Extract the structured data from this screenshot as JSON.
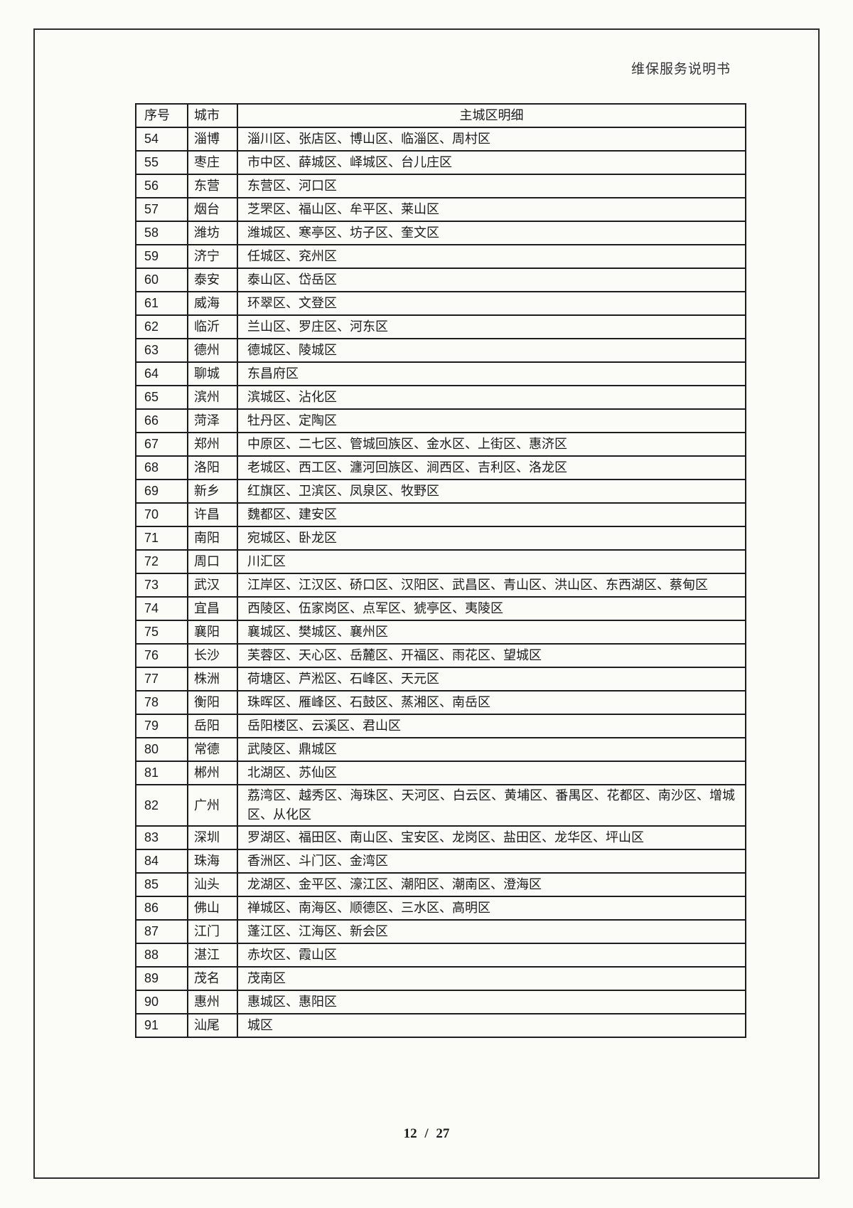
{
  "page": {
    "header_title": "维保服务说明书",
    "footer_text": "12 / 27"
  },
  "table": {
    "headers": {
      "no": "序号",
      "city": "城市",
      "districts": "主城区明细"
    },
    "rows": [
      {
        "no": "54",
        "city": "淄博",
        "districts": "淄川区、张店区、博山区、临淄区、周村区"
      },
      {
        "no": "55",
        "city": "枣庄",
        "districts": "市中区、薛城区、峄城区、台儿庄区"
      },
      {
        "no": "56",
        "city": "东营",
        "districts": "东营区、河口区"
      },
      {
        "no": "57",
        "city": "烟台",
        "districts": "芝罘区、福山区、牟平区、莱山区"
      },
      {
        "no": "58",
        "city": "潍坊",
        "districts": "潍城区、寒亭区、坊子区、奎文区"
      },
      {
        "no": "59",
        "city": "济宁",
        "districts": "任城区、兖州区"
      },
      {
        "no": "60",
        "city": "泰安",
        "districts": "泰山区、岱岳区"
      },
      {
        "no": "61",
        "city": "威海",
        "districts": "环翠区、文登区"
      },
      {
        "no": "62",
        "city": "临沂",
        "districts": "兰山区、罗庄区、河东区"
      },
      {
        "no": "63",
        "city": "德州",
        "districts": "德城区、陵城区"
      },
      {
        "no": "64",
        "city": "聊城",
        "districts": "东昌府区"
      },
      {
        "no": "65",
        "city": "滨州",
        "districts": "滨城区、沾化区"
      },
      {
        "no": "66",
        "city": "菏泽",
        "districts": "牡丹区、定陶区"
      },
      {
        "no": "67",
        "city": "郑州",
        "districts": "中原区、二七区、管城回族区、金水区、上街区、惠济区"
      },
      {
        "no": "68",
        "city": "洛阳",
        "districts": "老城区、西工区、瀍河回族区、涧西区、吉利区、洛龙区"
      },
      {
        "no": "69",
        "city": "新乡",
        "districts": "红旗区、卫滨区、凤泉区、牧野区"
      },
      {
        "no": "70",
        "city": "许昌",
        "districts": "魏都区、建安区"
      },
      {
        "no": "71",
        "city": "南阳",
        "districts": "宛城区、卧龙区"
      },
      {
        "no": "72",
        "city": "周口",
        "districts": "川汇区"
      },
      {
        "no": "73",
        "city": "武汉",
        "districts": "江岸区、江汉区、硚口区、汉阳区、武昌区、青山区、洪山区、东西湖区、蔡甸区"
      },
      {
        "no": "74",
        "city": "宜昌",
        "districts": "西陵区、伍家岗区、点军区、猇亭区、夷陵区"
      },
      {
        "no": "75",
        "city": "襄阳",
        "districts": "襄城区、樊城区、襄州区"
      },
      {
        "no": "76",
        "city": "长沙",
        "districts": "芙蓉区、天心区、岳麓区、开福区、雨花区、望城区"
      },
      {
        "no": "77",
        "city": "株洲",
        "districts": "荷塘区、芦淞区、石峰区、天元区"
      },
      {
        "no": "78",
        "city": "衡阳",
        "districts": "珠晖区、雁峰区、石鼓区、蒸湘区、南岳区"
      },
      {
        "no": "79",
        "city": "岳阳",
        "districts": "岳阳楼区、云溪区、君山区"
      },
      {
        "no": "80",
        "city": "常德",
        "districts": "武陵区、鼎城区"
      },
      {
        "no": "81",
        "city": "郴州",
        "districts": "北湖区、苏仙区"
      },
      {
        "no": "82",
        "city": "广州",
        "districts": "荔湾区、越秀区、海珠区、天河区、白云区、黄埔区、番禺区、花都区、南沙区、增城区、从化区"
      },
      {
        "no": "83",
        "city": "深圳",
        "districts": "罗湖区、福田区、南山区、宝安区、龙岗区、盐田区、龙华区、坪山区"
      },
      {
        "no": "84",
        "city": "珠海",
        "districts": "香洲区、斗门区、金湾区"
      },
      {
        "no": "85",
        "city": "汕头",
        "districts": "龙湖区、金平区、濠江区、潮阳区、潮南区、澄海区"
      },
      {
        "no": "86",
        "city": "佛山",
        "districts": "禅城区、南海区、顺德区、三水区、高明区"
      },
      {
        "no": "87",
        "city": "江门",
        "districts": "蓬江区、江海区、新会区"
      },
      {
        "no": "88",
        "city": "湛江",
        "districts": "赤坎区、霞山区"
      },
      {
        "no": "89",
        "city": "茂名",
        "districts": "茂南区"
      },
      {
        "no": "90",
        "city": "惠州",
        "districts": "惠城区、惠阳区"
      },
      {
        "no": "91",
        "city": "汕尾",
        "districts": "城区"
      }
    ]
  }
}
